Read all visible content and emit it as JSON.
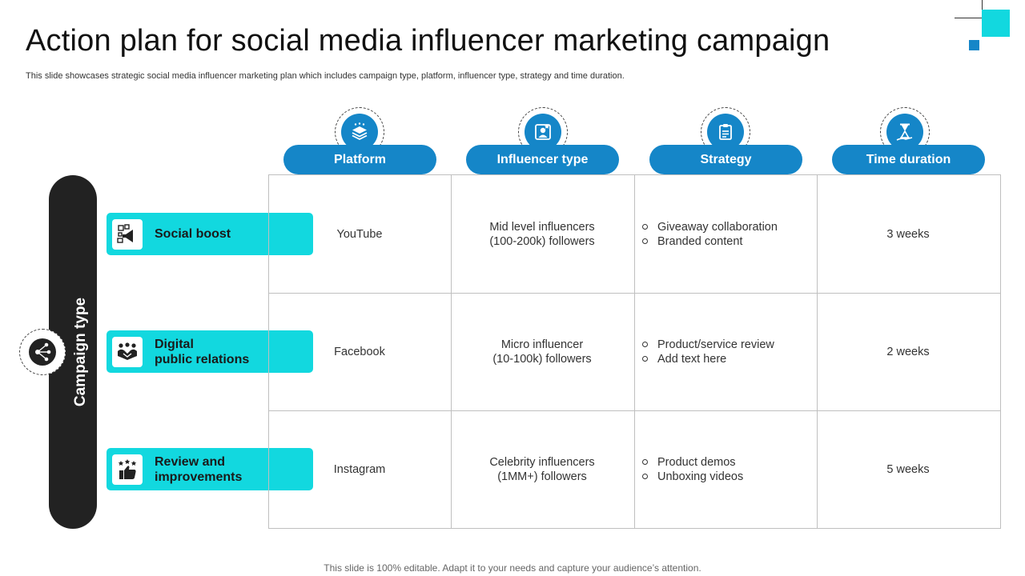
{
  "title": "Action plan for social media influencer marketing campaign",
  "subtitle": "This slide showcases strategic social media influencer marketing plan which includes campaign type, platform, influencer type, strategy and time duration.",
  "footer": "This slide is 100% editable. Adapt it to your needs and capture your audience’s attention.",
  "colors": {
    "accent_cyan": "#12d8df",
    "accent_blue": "#1586c8",
    "bar_dark": "#222222"
  },
  "campaign_label": "Campaign type",
  "campaign_icon": "network-share-icon",
  "headers": [
    {
      "label": "Platform",
      "icon": "layers-icon"
    },
    {
      "label": "Influencer type",
      "icon": "influencer-profile-icon"
    },
    {
      "label": "Strategy",
      "icon": "clipboard-icon"
    },
    {
      "label": "Time duration",
      "icon": "hourglass-icon"
    }
  ],
  "rows": [
    {
      "label": "Social boost",
      "icon": "megaphone-icon",
      "platform": "YouTube",
      "influencer": [
        "Mid level influencers",
        "(100-200k) followers"
      ],
      "strategy": [
        "Giveaway collaboration",
        "Branded content"
      ],
      "duration": "3 weeks"
    },
    {
      "label": "Digital\npublic relations",
      "icon": "handshake-icon",
      "platform": "Facebook",
      "influencer": [
        "Micro influencer",
        "(10-100k) followers"
      ],
      "strategy": [
        "Product/service review",
        "Add text here"
      ],
      "duration": "2 weeks"
    },
    {
      "label": "Review and\nimprovements",
      "icon": "thumbs-up-stars-icon",
      "platform": "Instagram",
      "influencer": [
        "Celebrity influencers",
        "(1MM+) followers"
      ],
      "strategy": [
        "Product demos",
        "Unboxing videos"
      ],
      "duration": "5 weeks"
    }
  ]
}
